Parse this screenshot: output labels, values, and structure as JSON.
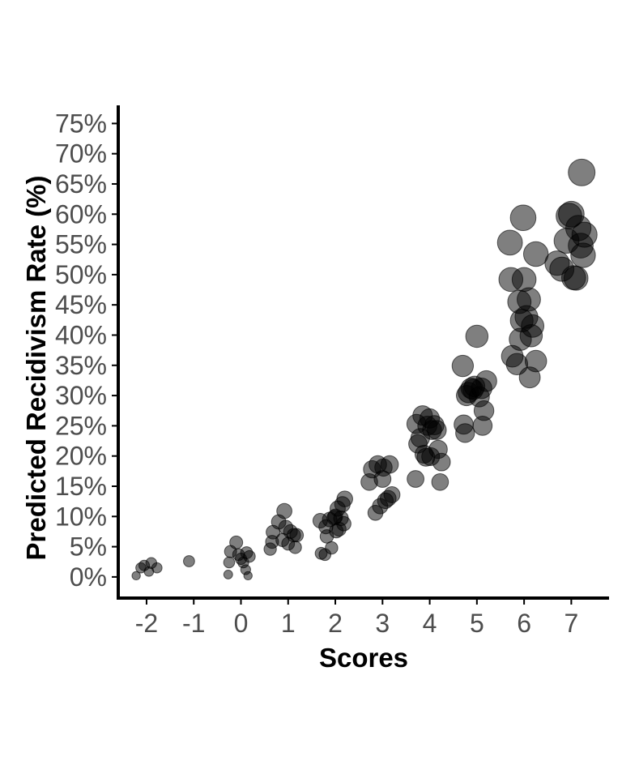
{
  "chart_data": {
    "type": "scatter",
    "xlabel": "Scores",
    "ylabel": "Predicted Recidivism Rate (%)",
    "xlim": [
      -2.6,
      7.8
    ],
    "ylim": [
      -3.5,
      78
    ],
    "x_ticks": [
      {
        "value": -2,
        "label": "-2"
      },
      {
        "value": -1,
        "label": "-1"
      },
      {
        "value": 0,
        "label": "0"
      },
      {
        "value": 1,
        "label": "1"
      },
      {
        "value": 2,
        "label": "2"
      },
      {
        "value": 3,
        "label": "3"
      },
      {
        "value": 4,
        "label": "4"
      },
      {
        "value": 5,
        "label": "5"
      },
      {
        "value": 6,
        "label": "6"
      },
      {
        "value": 7,
        "label": "7"
      }
    ],
    "y_ticks": [
      {
        "value": 0,
        "label": "0%"
      },
      {
        "value": 5,
        "label": "5%"
      },
      {
        "value": 10,
        "label": "10%"
      },
      {
        "value": 15,
        "label": "15%"
      },
      {
        "value": 20,
        "label": "20%"
      },
      {
        "value": 25,
        "label": "25%"
      },
      {
        "value": 30,
        "label": "30%"
      },
      {
        "value": 35,
        "label": "35%"
      },
      {
        "value": 40,
        "label": "40%"
      },
      {
        "value": 45,
        "label": "45%"
      },
      {
        "value": 50,
        "label": "50%"
      },
      {
        "value": 55,
        "label": "55%"
      },
      {
        "value": 60,
        "label": "60%"
      },
      {
        "value": 65,
        "label": "65%"
      },
      {
        "value": 70,
        "label": "70%"
      },
      {
        "value": 75,
        "label": "75%"
      }
    ],
    "grid": false,
    "legend": "none",
    "point_color": "#000000",
    "point_opacity": 0.5,
    "size_encodes": "y",
    "points": [
      {
        "x": -2.22,
        "y": 0.2
      },
      {
        "x": -2.12,
        "y": 1.5
      },
      {
        "x": -2.05,
        "y": 1.9
      },
      {
        "x": -1.95,
        "y": 0.9
      },
      {
        "x": -1.9,
        "y": 2.3
      },
      {
        "x": -1.78,
        "y": 1.5
      },
      {
        "x": -1.1,
        "y": 2.6
      },
      {
        "x": -0.27,
        "y": 0.4
      },
      {
        "x": -0.25,
        "y": 2.4
      },
      {
        "x": -0.22,
        "y": 4.2
      },
      {
        "x": -0.1,
        "y": 5.7
      },
      {
        "x": -0.05,
        "y": 3.7
      },
      {
        "x": 0.0,
        "y": 3.0
      },
      {
        "x": 0.05,
        "y": 2.4
      },
      {
        "x": 0.1,
        "y": 1.2
      },
      {
        "x": 0.12,
        "y": 4.0
      },
      {
        "x": 0.15,
        "y": 0.2
      },
      {
        "x": 0.18,
        "y": 3.4
      },
      {
        "x": 0.62,
        "y": 4.6
      },
      {
        "x": 0.66,
        "y": 5.8
      },
      {
        "x": 0.68,
        "y": 7.4
      },
      {
        "x": 0.8,
        "y": 9.1
      },
      {
        "x": 0.88,
        "y": 6.1
      },
      {
        "x": 0.92,
        "y": 10.9
      },
      {
        "x": 0.95,
        "y": 8.2
      },
      {
        "x": 1.0,
        "y": 5.5
      },
      {
        "x": 1.05,
        "y": 7.5
      },
      {
        "x": 1.12,
        "y": 6.9
      },
      {
        "x": 1.15,
        "y": 4.9
      },
      {
        "x": 1.18,
        "y": 6.9
      },
      {
        "x": 1.68,
        "y": 9.3
      },
      {
        "x": 1.7,
        "y": 3.9
      },
      {
        "x": 1.78,
        "y": 3.7
      },
      {
        "x": 1.8,
        "y": 8.3
      },
      {
        "x": 1.82,
        "y": 6.7
      },
      {
        "x": 1.88,
        "y": 9.5
      },
      {
        "x": 1.92,
        "y": 4.8
      },
      {
        "x": 1.98,
        "y": 9.8
      },
      {
        "x": 2.0,
        "y": 10.0
      },
      {
        "x": 2.02,
        "y": 7.6
      },
      {
        "x": 2.05,
        "y": 11.3
      },
      {
        "x": 2.08,
        "y": 7.9
      },
      {
        "x": 2.12,
        "y": 9.7
      },
      {
        "x": 2.15,
        "y": 12.0
      },
      {
        "x": 2.18,
        "y": 8.8
      },
      {
        "x": 2.2,
        "y": 12.9
      },
      {
        "x": 2.72,
        "y": 15.7
      },
      {
        "x": 2.78,
        "y": 17.8
      },
      {
        "x": 2.85,
        "y": 10.6
      },
      {
        "x": 2.9,
        "y": 18.6
      },
      {
        "x": 2.95,
        "y": 11.7
      },
      {
        "x": 3.0,
        "y": 16.2
      },
      {
        "x": 3.02,
        "y": 18.1
      },
      {
        "x": 3.06,
        "y": 12.6
      },
      {
        "x": 3.12,
        "y": 13.0
      },
      {
        "x": 3.15,
        "y": 18.6
      },
      {
        "x": 3.2,
        "y": 13.6
      },
      {
        "x": 3.7,
        "y": 16.2
      },
      {
        "x": 3.72,
        "y": 25.3
      },
      {
        "x": 3.75,
        "y": 22.0
      },
      {
        "x": 3.8,
        "y": 23.0
      },
      {
        "x": 3.85,
        "y": 26.7
      },
      {
        "x": 3.88,
        "y": 20.3
      },
      {
        "x": 3.92,
        "y": 19.8
      },
      {
        "x": 3.95,
        "y": 25.0
      },
      {
        "x": 4.0,
        "y": 26.2
      },
      {
        "x": 4.02,
        "y": 19.9
      },
      {
        "x": 4.05,
        "y": 24.3
      },
      {
        "x": 4.1,
        "y": 25.1
      },
      {
        "x": 4.15,
        "y": 24.3
      },
      {
        "x": 4.18,
        "y": 21.1
      },
      {
        "x": 4.22,
        "y": 15.7
      },
      {
        "x": 4.25,
        "y": 19.0
      },
      {
        "x": 4.7,
        "y": 34.9
      },
      {
        "x": 4.72,
        "y": 25.2
      },
      {
        "x": 4.75,
        "y": 23.8
      },
      {
        "x": 4.78,
        "y": 30.0
      },
      {
        "x": 4.82,
        "y": 30.5
      },
      {
        "x": 4.88,
        "y": 31.2
      },
      {
        "x": 4.92,
        "y": 31.0
      },
      {
        "x": 4.95,
        "y": 31.5
      },
      {
        "x": 5.0,
        "y": 39.8
      },
      {
        "x": 5.05,
        "y": 29.8
      },
      {
        "x": 5.1,
        "y": 31.2
      },
      {
        "x": 5.12,
        "y": 25.0
      },
      {
        "x": 5.15,
        "y": 27.5
      },
      {
        "x": 5.2,
        "y": 32.4
      },
      {
        "x": 5.7,
        "y": 55.3
      },
      {
        "x": 5.72,
        "y": 49.2
      },
      {
        "x": 5.75,
        "y": 36.5
      },
      {
        "x": 5.85,
        "y": 35.2
      },
      {
        "x": 5.9,
        "y": 45.5
      },
      {
        "x": 5.92,
        "y": 39.3
      },
      {
        "x": 5.95,
        "y": 42.4
      },
      {
        "x": 5.98,
        "y": 59.4
      },
      {
        "x": 6.0,
        "y": 49.2
      },
      {
        "x": 6.05,
        "y": 43.0
      },
      {
        "x": 6.1,
        "y": 45.9
      },
      {
        "x": 6.12,
        "y": 33.0
      },
      {
        "x": 6.15,
        "y": 39.9
      },
      {
        "x": 6.18,
        "y": 41.5
      },
      {
        "x": 6.25,
        "y": 53.4
      },
      {
        "x": 6.25,
        "y": 35.7
      },
      {
        "x": 6.7,
        "y": 51.9
      },
      {
        "x": 6.8,
        "y": 50.9
      },
      {
        "x": 6.9,
        "y": 55.6
      },
      {
        "x": 6.95,
        "y": 59.7
      },
      {
        "x": 7.0,
        "y": 60.0
      },
      {
        "x": 7.05,
        "y": 49.5
      },
      {
        "x": 7.1,
        "y": 49.4
      },
      {
        "x": 7.15,
        "y": 57.7
      },
      {
        "x": 7.2,
        "y": 54.8
      },
      {
        "x": 7.22,
        "y": 66.9
      },
      {
        "x": 7.25,
        "y": 53.2
      },
      {
        "x": 7.28,
        "y": 56.6
      }
    ]
  }
}
